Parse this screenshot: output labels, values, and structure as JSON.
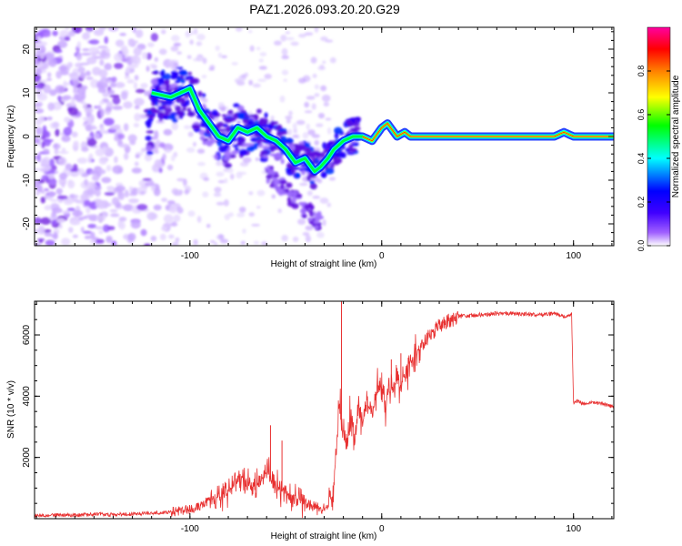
{
  "title": "PAZ1.2026.093.20.20.G29",
  "chart_data": [
    {
      "type": "heatmap",
      "name": "spectrogram",
      "xlabel": "Height of straight line (km)",
      "ylabel": "Frequency (Hz)",
      "xlim": [
        -181,
        121
      ],
      "ylim": [
        -25,
        25
      ],
      "xticks": [
        -100,
        0,
        100
      ],
      "xtick_labels": [
        "-100",
        "0",
        "100"
      ],
      "yticks": [
        -20,
        -10,
        0,
        10,
        20
      ],
      "ytick_labels": [
        "-20",
        "-10",
        "0",
        "10",
        "20"
      ],
      "colorbar": {
        "label": "Normalized spectral amplitude",
        "range": [
          0,
          1
        ],
        "ticks": [
          0.0,
          0.2,
          0.4,
          0.6,
          0.8
        ],
        "tick_labels": [
          "0.0",
          "0.2",
          "0.4",
          "0.6",
          "0.8"
        ],
        "colors": [
          "#ffffff",
          "#a060ff",
          "#4000ff",
          "#0000ff",
          "#00ffff",
          "#00ff00",
          "#ffff00",
          "#ff8000",
          "#ff0000",
          "#ff00a0"
        ]
      },
      "ridge": {
        "x": [
          -120,
          -110,
          -100,
          -95,
          -90,
          -85,
          -80,
          -75,
          -70,
          -65,
          -60,
          -55,
          -50,
          -45,
          -40,
          -35,
          -32,
          -28,
          -25,
          -20,
          -15,
          -10,
          -5,
          0,
          3,
          8,
          12,
          15,
          20,
          40,
          60,
          80,
          90,
          95,
          100,
          110,
          121
        ],
        "y": [
          10,
          9,
          11,
          6,
          3,
          0,
          -1,
          2,
          1,
          2,
          0,
          -1,
          -3,
          -6,
          -5,
          -8,
          -7,
          -5,
          -3,
          -1,
          0,
          0,
          -1,
          2,
          3,
          0,
          1,
          0,
          0,
          0,
          0,
          0,
          0,
          1,
          0,
          0,
          0
        ]
      }
    },
    {
      "type": "line",
      "name": "snr",
      "xlabel": "Height of straight line (km)",
      "ylabel": "SNR (10 * v/v)",
      "xlim": [
        -181,
        121
      ],
      "ylim": [
        0,
        7100
      ],
      "xticks": [
        -100,
        0,
        100
      ],
      "xtick_labels": [
        "-100",
        "0",
        "100"
      ],
      "yticks": [
        2000,
        4000,
        6000
      ],
      "ytick_labels": [
        "2000",
        "4000",
        "6000"
      ],
      "color": "#e83030",
      "series": [
        {
          "name": "SNR",
          "x": [
            -181,
            -170,
            -160,
            -150,
            -140,
            -130,
            -120,
            -110,
            -100,
            -95,
            -90,
            -85,
            -80,
            -75,
            -70,
            -65,
            -60,
            -55,
            -50,
            -45,
            -40,
            -35,
            -30,
            -26,
            -24,
            -22,
            -20,
            -18,
            -16,
            -14,
            -12,
            -10,
            -8,
            -6,
            -4,
            -2,
            0,
            2,
            4,
            6,
            8,
            10,
            12,
            15,
            20,
            25,
            30,
            40,
            50,
            60,
            70,
            80,
            90,
            95,
            98,
            99,
            100,
            102,
            105,
            110,
            115,
            121
          ],
          "y": [
            100,
            120,
            110,
            150,
            130,
            160,
            180,
            220,
            300,
            400,
            600,
            700,
            900,
            1300,
            1200,
            1100,
            1500,
            1000,
            900,
            700,
            500,
            350,
            300,
            600,
            2000,
            3600,
            2800,
            2400,
            3500,
            2600,
            3800,
            3000,
            4000,
            3400,
            3600,
            4300,
            4300,
            3800,
            4400,
            4100,
            4600,
            4200,
            4800,
            5100,
            5600,
            6000,
            6300,
            6600,
            6650,
            6700,
            6700,
            6650,
            6700,
            6600,
            6650,
            6650,
            3800,
            3850,
            3750,
            3800,
            3750,
            3650
          ]
        }
      ],
      "spikes": [
        {
          "x": -58,
          "y": 3050
        },
        {
          "x": -52,
          "y": 2550
        },
        {
          "x": -21,
          "y": 7100
        },
        {
          "x": 5,
          "y": 5200
        },
        {
          "x": 10,
          "y": 5400
        }
      ]
    }
  ]
}
